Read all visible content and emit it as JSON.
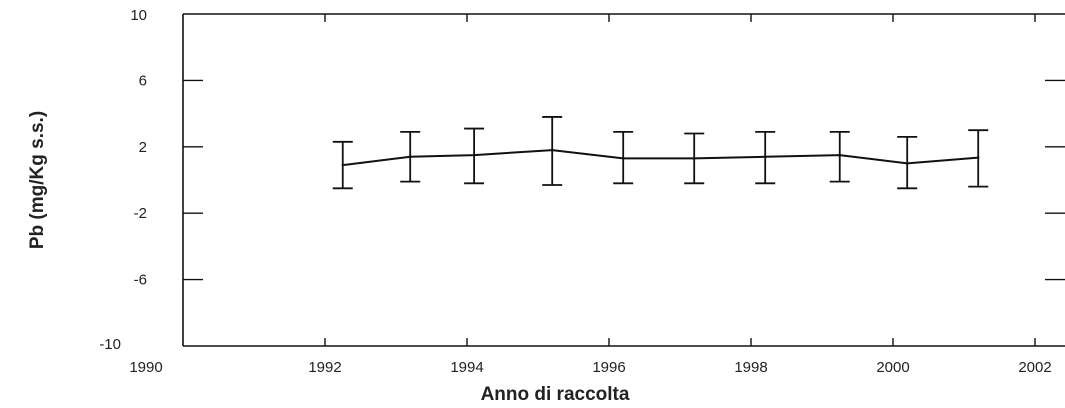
{
  "chart_data": {
    "type": "line",
    "xlabel": "Anno di raccolta",
    "ylabel": "Pb (mg/Kg s.s.)",
    "xlim": [
      1990,
      2002
    ],
    "ylim": [
      -10,
      10
    ],
    "xticks": [
      1990,
      1992,
      1994,
      1996,
      1998,
      2000,
      2002
    ],
    "yticks": [
      10,
      6,
      2,
      -2,
      -6,
      -10
    ],
    "grid": false,
    "series": [
      {
        "x": [
          1992.25,
          1993.2,
          1994.1,
          1995.2,
          1996.2,
          1997.2,
          1998.2,
          1999.25,
          2000.2,
          2001.2
        ],
        "y": [
          0.9,
          1.4,
          1.5,
          1.8,
          1.3,
          1.3,
          1.4,
          1.5,
          1.0,
          1.35
        ],
        "error_upper": [
          2.3,
          2.9,
          3.1,
          3.8,
          2.9,
          2.8,
          2.9,
          2.9,
          2.6,
          3.0
        ],
        "error_lower": [
          -0.5,
          -0.1,
          -0.2,
          -0.3,
          -0.2,
          -0.2,
          -0.2,
          -0.1,
          -0.5,
          -0.4
        ]
      }
    ],
    "colors": {
      "line": "#111111",
      "axis": "#111111",
      "text": "#222222"
    }
  }
}
